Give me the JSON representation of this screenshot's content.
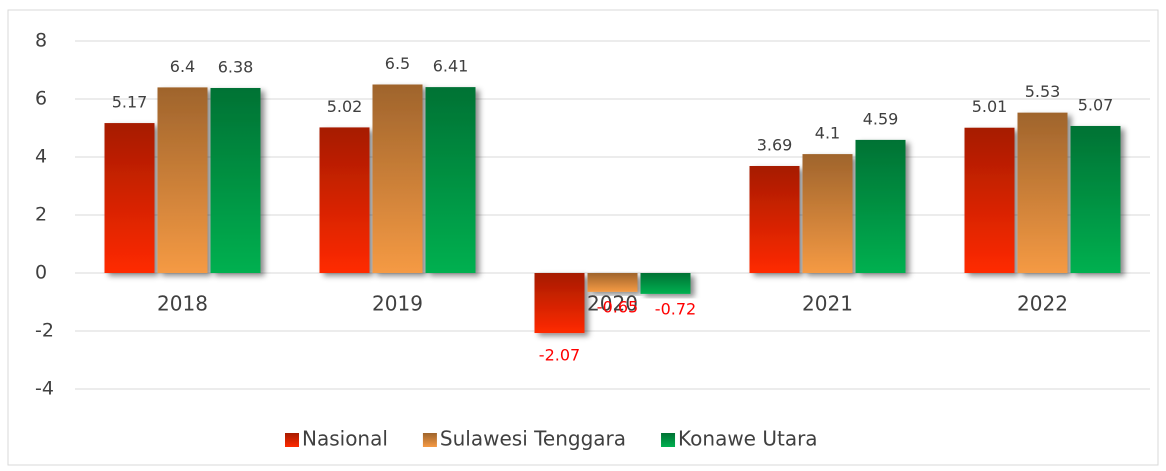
{
  "chart_data": {
    "type": "bar",
    "categories": [
      "2018",
      "2019",
      "2020",
      "2021",
      "2022"
    ],
    "series": [
      {
        "name": "Nasional",
        "color": "#ff2a00",
        "values": [
          5.17,
          5.02,
          -2.07,
          3.69,
          5.01
        ]
      },
      {
        "name": "Sulawesi Tenggara",
        "color": "#f59a44",
        "values": [
          6.4,
          6.5,
          -0.65,
          4.1,
          5.53
        ]
      },
      {
        "name": "Konawe Utara",
        "color": "#00b050",
        "values": [
          6.38,
          6.41,
          -0.72,
          4.59,
          5.07
        ]
      }
    ],
    "ylim": [
      -4,
      8
    ],
    "yticks": [
      -4,
      -2,
      0,
      2,
      4,
      6,
      8
    ],
    "grid": true,
    "legend": "bottom",
    "negative_label_color": "#ff0000"
  }
}
